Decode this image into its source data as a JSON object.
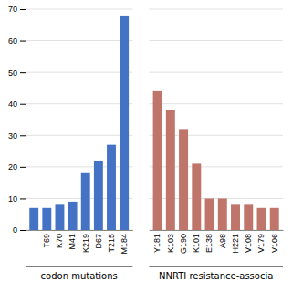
{
  "chart_data": [
    {
      "type": "bar",
      "categories": [
        null,
        "T69",
        "K70",
        "M41",
        "K219",
        "D67",
        "T215",
        "M184"
      ],
      "values": [
        7,
        7,
        8,
        9,
        18,
        22,
        27,
        68
      ],
      "color": "#4472C4",
      "xlabel": "codon mutations",
      "ylim": [
        0,
        70
      ],
      "yticks": [
        0,
        10,
        20,
        30,
        40,
        50,
        60,
        70
      ],
      "grid": true
    },
    {
      "type": "bar",
      "categories": [
        "Y181",
        "K103",
        "G190",
        "K101",
        "E138",
        "A98",
        "H221",
        "V108",
        "V179",
        "V106"
      ],
      "values": [
        44,
        38,
        32,
        21,
        10,
        10,
        8,
        8,
        7,
        7
      ],
      "color": "#C0756A",
      "xlabel": "NNRTI resistance-associa",
      "ylim": [
        0,
        70
      ],
      "yticks": [
        0,
        10,
        20,
        30,
        40,
        50,
        60,
        70
      ],
      "grid": true,
      "tick_labels": "x"
    }
  ]
}
